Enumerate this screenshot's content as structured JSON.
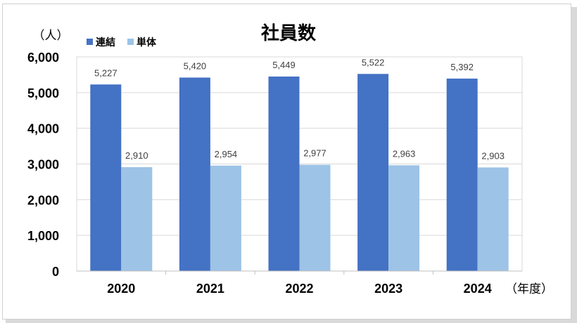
{
  "chart_data": {
    "type": "bar",
    "title": "社員数",
    "ylabel": "（人）",
    "xlabel": "（年度）",
    "categories": [
      "2020",
      "2021",
      "2022",
      "2023",
      "2024"
    ],
    "series": [
      {
        "name": "連結",
        "values": [
          5227,
          5420,
          5449,
          5522,
          5392
        ],
        "labels": [
          "5,227",
          "5,420",
          "5,449",
          "5,522",
          "5,392"
        ],
        "color": "#4472c4"
      },
      {
        "name": "単体",
        "values": [
          2910,
          2954,
          2977,
          2963,
          2903
        ],
        "labels": [
          "2,910",
          "2,954",
          "2,977",
          "2,963",
          "2,903"
        ],
        "color": "#9dc3e6"
      }
    ],
    "ylim": [
      0,
      6000
    ],
    "yticks": [
      0,
      1000,
      2000,
      3000,
      4000,
      5000,
      6000
    ],
    "ytick_labels": [
      "0",
      "1,000",
      "2,000",
      "3,000",
      "4,000",
      "5,000",
      "6,000"
    ],
    "grid": true,
    "legend_position": "top-left"
  }
}
